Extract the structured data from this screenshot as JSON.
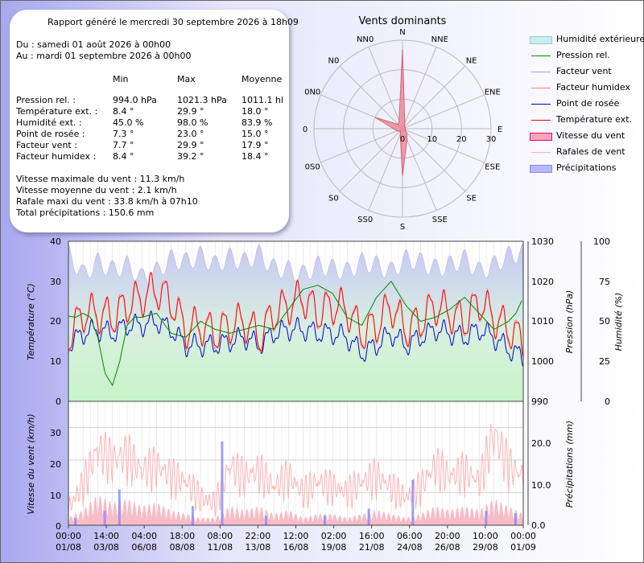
{
  "colors": {
    "humidity": "#d8f4d8",
    "pressure": "#008800",
    "windchill": "#a0a0ff",
    "heatindex": "#ff8080",
    "dewpoint": "#0000cc",
    "temp": "#ff0000",
    "windspeed": "#ff9999",
    "gust": "#ffb3b3",
    "rain": "#8888ff",
    "rose": "#f08090"
  },
  "report": {
    "title": "Rapport généré le mercredi 30 septembre 2026 à 18h09",
    "from": "Du : samedi 01 août 2026 à 00h00",
    "to": "Au : mardi 01 septembre 2026 à 00h00",
    "col_min": "Min",
    "col_max": "Max",
    "col_avg": "Moyenne",
    "rows": [
      {
        "label": "Pression rel. :",
        "min": "994.0 hPa",
        "max": "1021.3 hPa",
        "avg": "1011.1 hPa"
      },
      {
        "label": "Température ext. :",
        "min": "8.4 °",
        "max": "29.9 °",
        "avg": "18.0 °"
      },
      {
        "label": "Humidité ext. :",
        "min": "45.0 %",
        "max": "98.0 %",
        "avg": "83.9 %"
      },
      {
        "label": "Point de rosée :",
        "min": "7.3 °",
        "max": "23.0 °",
        "avg": "15.0 °"
      },
      {
        "label": "Facteur vent :",
        "min": "7.7 °",
        "max": "29.9 °",
        "avg": "17.9 °"
      },
      {
        "label": "Facteur humidex :",
        "min": "8.4 °",
        "max": "39.2 °",
        "avg": "18.4 °"
      }
    ],
    "wind_max": "Vitesse maximale du vent : 11.3 km/h",
    "wind_avg": "Vitesse moyenne du vent : 2.1 km/h",
    "gust_max": "Rafale maxi du vent : 33.8 km/h à 07h10",
    "rain_total": "Total précipitations : 150.6 mm"
  },
  "legend": [
    {
      "label": "Humidité extérieure",
      "kind": "area",
      "key": "humidity"
    },
    {
      "label": "Pression rel.",
      "kind": "line",
      "key": "pressure"
    },
    {
      "label": "Facteur vent",
      "kind": "line",
      "key": "windchill"
    },
    {
      "label": "Facteur humidex",
      "kind": "line",
      "key": "heatindex"
    },
    {
      "label": "Point de rosée",
      "kind": "line",
      "key": "dewpoint"
    },
    {
      "label": "Température ext.",
      "kind": "line",
      "key": "temp"
    },
    {
      "label": "Vitesse du vent",
      "kind": "area",
      "key": "windspeed"
    },
    {
      "label": "Rafales de vent",
      "kind": "line",
      "key": "gust"
    },
    {
      "label": "Précipitations",
      "kind": "area",
      "key": "rain"
    }
  ],
  "chart_data": [
    {
      "type": "radar",
      "title": "Vents dominants",
      "directions": [
        "N",
        "NNE",
        "NE",
        "ENE",
        "E",
        "ESE",
        "SE",
        "SSE",
        "S",
        "SSO",
        "SO",
        "OSO",
        "O",
        "ONO",
        "NO",
        "NNO"
      ],
      "direction_labels": [
        "N",
        "NNE",
        "NE",
        "ENE",
        "E",
        "ESE",
        "SE",
        "SSE",
        "S",
        "SS0",
        "S0",
        "0S0",
        "0",
        "0N0",
        "N0",
        "NN0"
      ],
      "values": [
        27,
        2,
        1,
        1,
        1,
        1,
        2,
        4,
        16,
        2,
        1,
        2,
        3,
        10,
        2,
        3
      ],
      "rlim": [
        0,
        30
      ],
      "rticks": [
        "0",
        "10",
        "20",
        "30"
      ]
    },
    {
      "type": "line",
      "x_ticks_time": [
        "00:00",
        "14:00",
        "04:00",
        "18:00",
        "08:00",
        "22:00",
        "12:00",
        "02:00",
        "16:00",
        "06:00",
        "20:00",
        "10:00",
        "00:00"
      ],
      "x_ticks_date": [
        "01/08",
        "03/08",
        "06/08",
        "08/08",
        "11/08",
        "13/08",
        "16/08",
        "19/08",
        "21/08",
        "24/08",
        "26/08",
        "29/08",
        "01/09"
      ],
      "xlim_days": [
        0,
        31
      ],
      "axes": {
        "temp": {
          "label": "Température (°C)",
          "ylim": [
            0,
            40
          ],
          "ticks": [
            "0",
            "10",
            "20",
            "30",
            "40"
          ]
        },
        "pressure": {
          "label": "Pression (hPa)",
          "ylim": [
            990,
            1030
          ],
          "ticks": [
            "990",
            "1000",
            "1010",
            "1020",
            "1030"
          ]
        },
        "humidity": {
          "label": "Humidité (%)",
          "ylim": [
            0,
            100
          ],
          "ticks": [
            "0",
            "25",
            "50",
            "75",
            "100"
          ]
        }
      },
      "series": [
        {
          "name": "Pression rel.",
          "key": "pressure",
          "axis": "pressure",
          "x": [
            0,
            0.5,
            1,
            1.5,
            2,
            2.5,
            3,
            3.5,
            4,
            4.5,
            5,
            6,
            7,
            8,
            9,
            10,
            11,
            12,
            13,
            14,
            15,
            16,
            17,
            18,
            19,
            20,
            21,
            22,
            23,
            24,
            25,
            26,
            27,
            28,
            29,
            30,
            30.5,
            31
          ],
          "values": [
            1011.3,
            1011,
            1012,
            1011,
            1006,
            997,
            994,
            1000,
            1009,
            1011,
            1011,
            1012,
            1007,
            1006,
            1010,
            1008,
            1007,
            1008,
            1009,
            1008,
            1013,
            1018,
            1019,
            1017,
            1011,
            1009,
            1016,
            1020,
            1014,
            1010,
            1011,
            1013,
            1016,
            1012,
            1008,
            1010,
            1012,
            1016
          ]
        },
        {
          "name": "Température ext.",
          "key": "temp",
          "axis": "temp",
          "x": [
            0,
            1,
            2,
            3,
            4,
            5,
            6,
            7,
            8,
            9,
            10,
            11,
            12,
            13,
            14,
            15,
            16,
            17,
            18,
            19,
            20,
            21,
            22,
            23,
            24,
            25,
            26,
            27,
            28,
            29,
            30,
            31
          ],
          "values": [
            16,
            22,
            22,
            21,
            24,
            26,
            28,
            25,
            18,
            19,
            17,
            19,
            20,
            16,
            22,
            24,
            26,
            22,
            24,
            23,
            17,
            19,
            24,
            18,
            20,
            24,
            22,
            20,
            25,
            21,
            18,
            15
          ]
        },
        {
          "name": "Point de rosée",
          "key": "dewpoint",
          "axis": "temp",
          "x": [
            0,
            1,
            2,
            3,
            4,
            5,
            6,
            7,
            8,
            9,
            10,
            11,
            12,
            13,
            14,
            15,
            16,
            17,
            18,
            19,
            20,
            21,
            22,
            23,
            24,
            25,
            26,
            27,
            28,
            29,
            30,
            31
          ],
          "values": [
            14,
            17,
            18,
            17,
            19,
            19,
            20,
            18,
            14,
            14,
            14,
            15,
            16,
            14,
            17,
            18,
            18,
            17,
            17,
            16,
            12,
            14,
            17,
            14,
            16,
            18,
            17,
            16,
            18,
            16,
            13,
            11
          ]
        },
        {
          "name": "Humidité extérieure",
          "key": "humidity",
          "axis": "humidity",
          "x": [
            0,
            1,
            2,
            3,
            4,
            5,
            6,
            7,
            8,
            9,
            10,
            11,
            12,
            13,
            14,
            15,
            16,
            17,
            18,
            19,
            20,
            21,
            22,
            23,
            24,
            25,
            26,
            27,
            28,
            29,
            30,
            31
          ],
          "values": [
            95,
            82,
            90,
            85,
            88,
            80,
            84,
            92,
            90,
            94,
            88,
            93,
            90,
            95,
            86,
            85,
            82,
            88,
            86,
            84,
            90,
            88,
            84,
            92,
            90,
            86,
            88,
            92,
            84,
            88,
            94,
            96
          ]
        }
      ]
    },
    {
      "type": "area",
      "xlim_days": [
        0,
        31
      ],
      "axes": {
        "wind": {
          "label": "Vitesse du vent (km/h)",
          "ylim": [
            0,
            38
          ],
          "ticks": [
            "0",
            "10",
            "20",
            "30"
          ]
        },
        "rain": {
          "label": "Précipitations (mm)",
          "ylim": [
            0,
            26
          ],
          "ticks": [
            "0.0",
            "10.0",
            "20.0"
          ]
        }
      },
      "series": [
        {
          "name": "Rafales de vent",
          "key": "gust",
          "axis": "wind",
          "x": [
            0,
            1,
            2,
            3,
            4,
            5,
            6,
            7,
            8,
            9,
            10,
            11,
            12,
            13,
            14,
            15,
            16,
            17,
            18,
            19,
            20,
            21,
            22,
            23,
            24,
            25,
            26,
            27,
            28,
            29,
            30,
            31
          ],
          "values": [
            6,
            15,
            28,
            24,
            26,
            20,
            22,
            18,
            16,
            10,
            8,
            22,
            18,
            20,
            14,
            18,
            12,
            16,
            14,
            12,
            16,
            18,
            14,
            10,
            14,
            22,
            18,
            20,
            16,
            34,
            22,
            18
          ]
        },
        {
          "name": "Vitesse du vent",
          "key": "windspeed",
          "axis": "wind",
          "x": [
            0,
            1,
            2,
            3,
            4,
            5,
            6,
            7,
            8,
            9,
            10,
            11,
            12,
            13,
            14,
            15,
            16,
            17,
            18,
            19,
            20,
            21,
            22,
            23,
            24,
            25,
            26,
            27,
            28,
            29,
            30,
            31
          ],
          "values": [
            2,
            4,
            8,
            6,
            7,
            5,
            6,
            4,
            3,
            2,
            2,
            5,
            4,
            5,
            3,
            4,
            2,
            3,
            3,
            2,
            3,
            4,
            3,
            2,
            3,
            5,
            4,
            5,
            4,
            7,
            5,
            3
          ]
        },
        {
          "name": "Précipitations",
          "key": "rain",
          "axis": "rain",
          "x": [
            0,
            2,
            3,
            8,
            10,
            13,
            17,
            20,
            23,
            28,
            30
          ],
          "values": [
            1.5,
            3,
            7.5,
            4,
            17.6,
            2,
            2,
            3.5,
            9.5,
            3,
            2.5
          ]
        }
      ]
    }
  ]
}
